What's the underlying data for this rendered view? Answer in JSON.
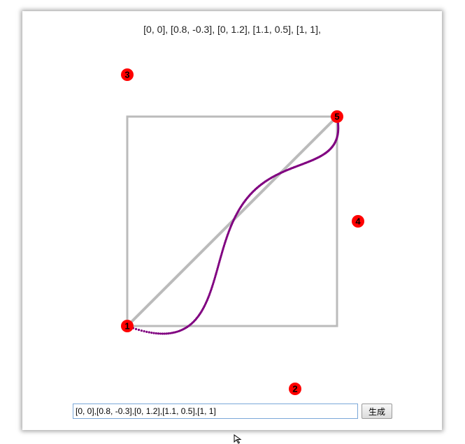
{
  "header": {
    "points_display": "[0, 0], [0.8, -0.3], [0, 1.2], [1.1, 0.5], [1, 1],"
  },
  "control_points": [
    {
      "label": "1",
      "x": 0,
      "y": 0
    },
    {
      "label": "2",
      "x": 0.8,
      "y": -0.3
    },
    {
      "label": "3",
      "x": 0,
      "y": 1.2
    },
    {
      "label": "4",
      "x": 1.1,
      "y": 0.5
    },
    {
      "label": "5",
      "x": 1,
      "y": 1
    }
  ],
  "controls": {
    "input_value": "[0, 0],[0.8, -0.3],[0, 1.2],[1.1, 0.5],[1, 1]",
    "generate_label": "生成"
  },
  "colors": {
    "curve": "#800080",
    "guide": "#bbbbbb",
    "point": "#ff0000"
  }
}
